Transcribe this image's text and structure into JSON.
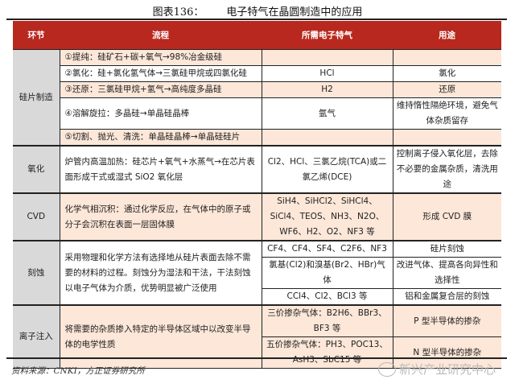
{
  "title": {
    "label": "图表136：",
    "text": "电子特气在晶圆制造中的应用"
  },
  "table": {
    "headers": [
      "环节",
      "流程",
      "所需电子特气",
      "用途"
    ],
    "silicon": {
      "stage": "硅片制造",
      "rows": [
        {
          "process": "①提纯：硅矿石+碳+氧气→98%冶金级硅",
          "gas": "",
          "use": ""
        },
        {
          "process": "②氯化：硅+氯化氢气体→三氯硅甲烷或四氯化硅",
          "gas": "HCl",
          "use": "氯化"
        },
        {
          "process": "③还原：三氯硅甲烷+氢气→高纯度多晶硅",
          "gas": "H2",
          "use": "还原"
        },
        {
          "process": "④溶解旋拉：多晶硅→单晶硅晶棒",
          "gas": "氩气",
          "use": "维持惰性隔绝环境，避免气体杂质留存"
        },
        {
          "process": "⑤切割、抛光、清洗：单晶硅晶棒→单晶硅硅片",
          "gas": "",
          "use": ""
        }
      ]
    },
    "oxidation": {
      "stage": "氧化",
      "process": "炉管内高温加热：硅芯片+氧气+水蒸气→在芯片表面形成干式或湿式 SiO2 氧化层",
      "gas": "Cl2、HCl、三氯乙烷(TCA)或二氯乙烯(DCE)",
      "use": "控制离子侵入氧化层，去除不必要的金属杂质，清洗用途"
    },
    "cvd": {
      "stage": "CVD",
      "process": "化学气相沉积：通过化学反应，在气体中的原子或分子会沉积在表面一层固体膜",
      "gas": "SiH4、SiHCl2、SiHCl4、SiCl4、TEOS、NH3、N2O、WF6、H2、O2、NF3 等",
      "use": "形成 CVD 膜"
    },
    "etching": {
      "stage": "刻蚀",
      "process": "采用物理和化学方法有选择地从硅片表面去除不需要的材料的过程。刻蚀分为湿法和干法，干法刻蚀以电子气体为介质，优势明显被广泛使用",
      "rows": [
        {
          "gas": "CF4、CF4、SF4、C2F6、NF3",
          "use": "硅片刻蚀"
        },
        {
          "gas": "氯基(Cl2)和溴基(Br2、HBr)气体",
          "use": "改进气体、提高各向异性和选择性"
        },
        {
          "gas": "CCl4、Cl2、BCl3 等",
          "use": "铝和金属复合层的刻蚀"
        }
      ]
    },
    "ion": {
      "stage": "离子注入",
      "process": "将需要的杂质掺入特定的半导体区域中以改变半导体的电学性质",
      "rows": [
        {
          "gas": "三价掺杂气体：B2H6、BBr3、BF3 等",
          "use": "P 型半导体的掺杂"
        },
        {
          "gas": "五价掺杂气体：PH3、POC13、AsH3、SbC15 等",
          "use": "N 型半导体的掺杂"
        }
      ]
    }
  },
  "source": "资料来源：CNKI，方正证券研究所",
  "watermark": "新兴产业研究中心",
  "colors": {
    "header": "#b8281e",
    "peach": "#fce7d8",
    "stage": "#d9d9d9"
  }
}
